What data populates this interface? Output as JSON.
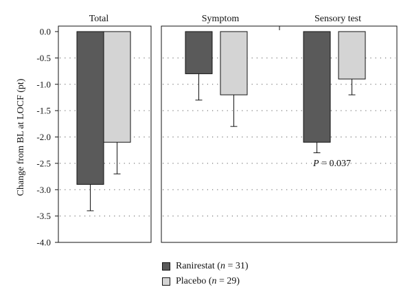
{
  "chart_data": {
    "type": "bar",
    "ylabel": "Change from BL at LOCF (pt)",
    "ylim": [
      -4.0,
      0.0
    ],
    "yticks": [
      "0.0",
      "-0.5",
      "-1.0",
      "-1.5",
      "-2.0",
      "-2.5",
      "-3.0",
      "-3.5",
      "-4.0"
    ],
    "grid": "dotted horizontal",
    "legend_position": "bottom-center",
    "categories": [
      "Total",
      "Symptom",
      "Sensory test"
    ],
    "series": [
      {
        "name": "Ranirestat",
        "n_label": "31",
        "color": "#5a5a5a",
        "values": [
          -2.9,
          -0.8,
          -2.1
        ],
        "error": [
          0.5,
          0.5,
          0.2
        ]
      },
      {
        "name": "Placebo",
        "n_label": "29",
        "color": "#d4d4d4",
        "values": [
          -2.1,
          -1.2,
          -0.9
        ],
        "error": [
          0.6,
          0.6,
          0.3
        ]
      }
    ],
    "annotations": [
      {
        "category": "Sensory test",
        "text_prefix": "P",
        "text_value": " = 0.037"
      }
    ]
  }
}
